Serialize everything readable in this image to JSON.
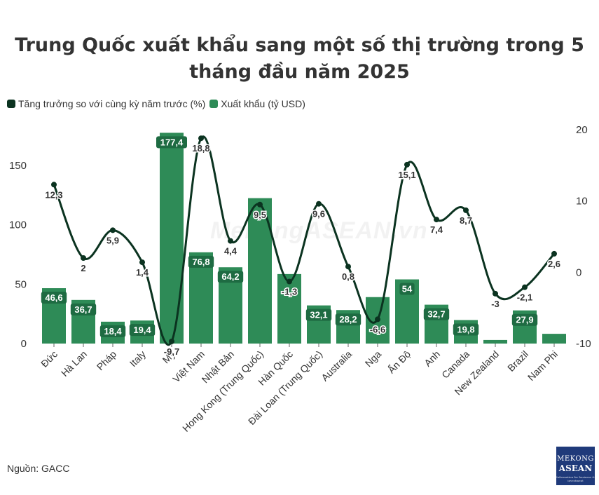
{
  "title": "Trung Quốc xuất khẩu sang một số thị trường trong 5 tháng đầu năm 2025",
  "legend": [
    {
      "label": "Tăng trưởng so với cùng kỳ năm trước (%)",
      "color": "#0b3320"
    },
    {
      "label": "Xuất khẩu (tỷ USD)",
      "color": "#2e8b57"
    }
  ],
  "source": "Nguồn: GACC",
  "watermark": "MekongASEAN.vn",
  "logo": {
    "line1": "MEKONG",
    "line2": "ASEAN",
    "line3": "Information for business & investment"
  },
  "colors": {
    "bar": "#2e8b57",
    "bar_label_bg": "#1e6b42",
    "line": "#0b3320",
    "text": "#333333"
  },
  "chart_data": {
    "type": "bar",
    "title": "Trung Quốc xuất khẩu sang một số thị trường trong 5 tháng đầu năm 2025",
    "categories": [
      "Đức",
      "Hà Lan",
      "Pháp",
      "Italy",
      "Mỹ",
      "Việt Nam",
      "Nhật Bản",
      "Hong Kong (Trung Quốc)",
      "Hàn Quốc",
      "Đài Loan (Trung Quốc)",
      "Australia",
      "Nga",
      "Ấn Độ",
      "Anh",
      "Canada",
      "New Zealand",
      "Brazil",
      "Nam Phi"
    ],
    "series": [
      {
        "name": "Xuất khẩu (tỷ USD)",
        "type": "bar",
        "axis": "left",
        "values": [
          46.6,
          36.7,
          18.4,
          19.4,
          177.4,
          76.8,
          64.2,
          122.4,
          58.5,
          32.1,
          28.2,
          39.1,
          54,
          32.7,
          19.8,
          3.0,
          27.9,
          8.2
        ],
        "labels": [
          "46,6",
          "36,7",
          "18,4",
          "19,4",
          "177,4",
          "76,8",
          "64,2",
          "",
          "",
          "32,1",
          "28,2",
          "",
          "54",
          "32,7",
          "19,8",
          "",
          "27,9",
          ""
        ]
      },
      {
        "name": "Tăng trưởng so với cùng kỳ năm trước (%)",
        "type": "line",
        "axis": "right",
        "values": [
          12.3,
          2,
          5.9,
          1.4,
          -9.7,
          18.8,
          4.4,
          9.5,
          -1.3,
          9.6,
          0.8,
          -6.6,
          15.1,
          7.4,
          8.7,
          -3,
          -2.1,
          2.6
        ],
        "labels": [
          "12,3",
          "2",
          "5,9",
          "1,4",
          "-9,7",
          "18,8",
          "4,4",
          "9,5",
          "-1,3",
          "9,6",
          "0,8",
          "-6,6",
          "15,1",
          "7,4",
          "8,7",
          "-3",
          "-2,1",
          "2,6"
        ]
      }
    ],
    "y_left": {
      "min": 0,
      "max": 180,
      "ticks": [
        0,
        50,
        100,
        150
      ]
    },
    "y_right": {
      "min": -10,
      "max": 20,
      "ticks": [
        -10,
        0,
        10,
        20
      ]
    },
    "grid": false,
    "legend_position": "top-left"
  }
}
